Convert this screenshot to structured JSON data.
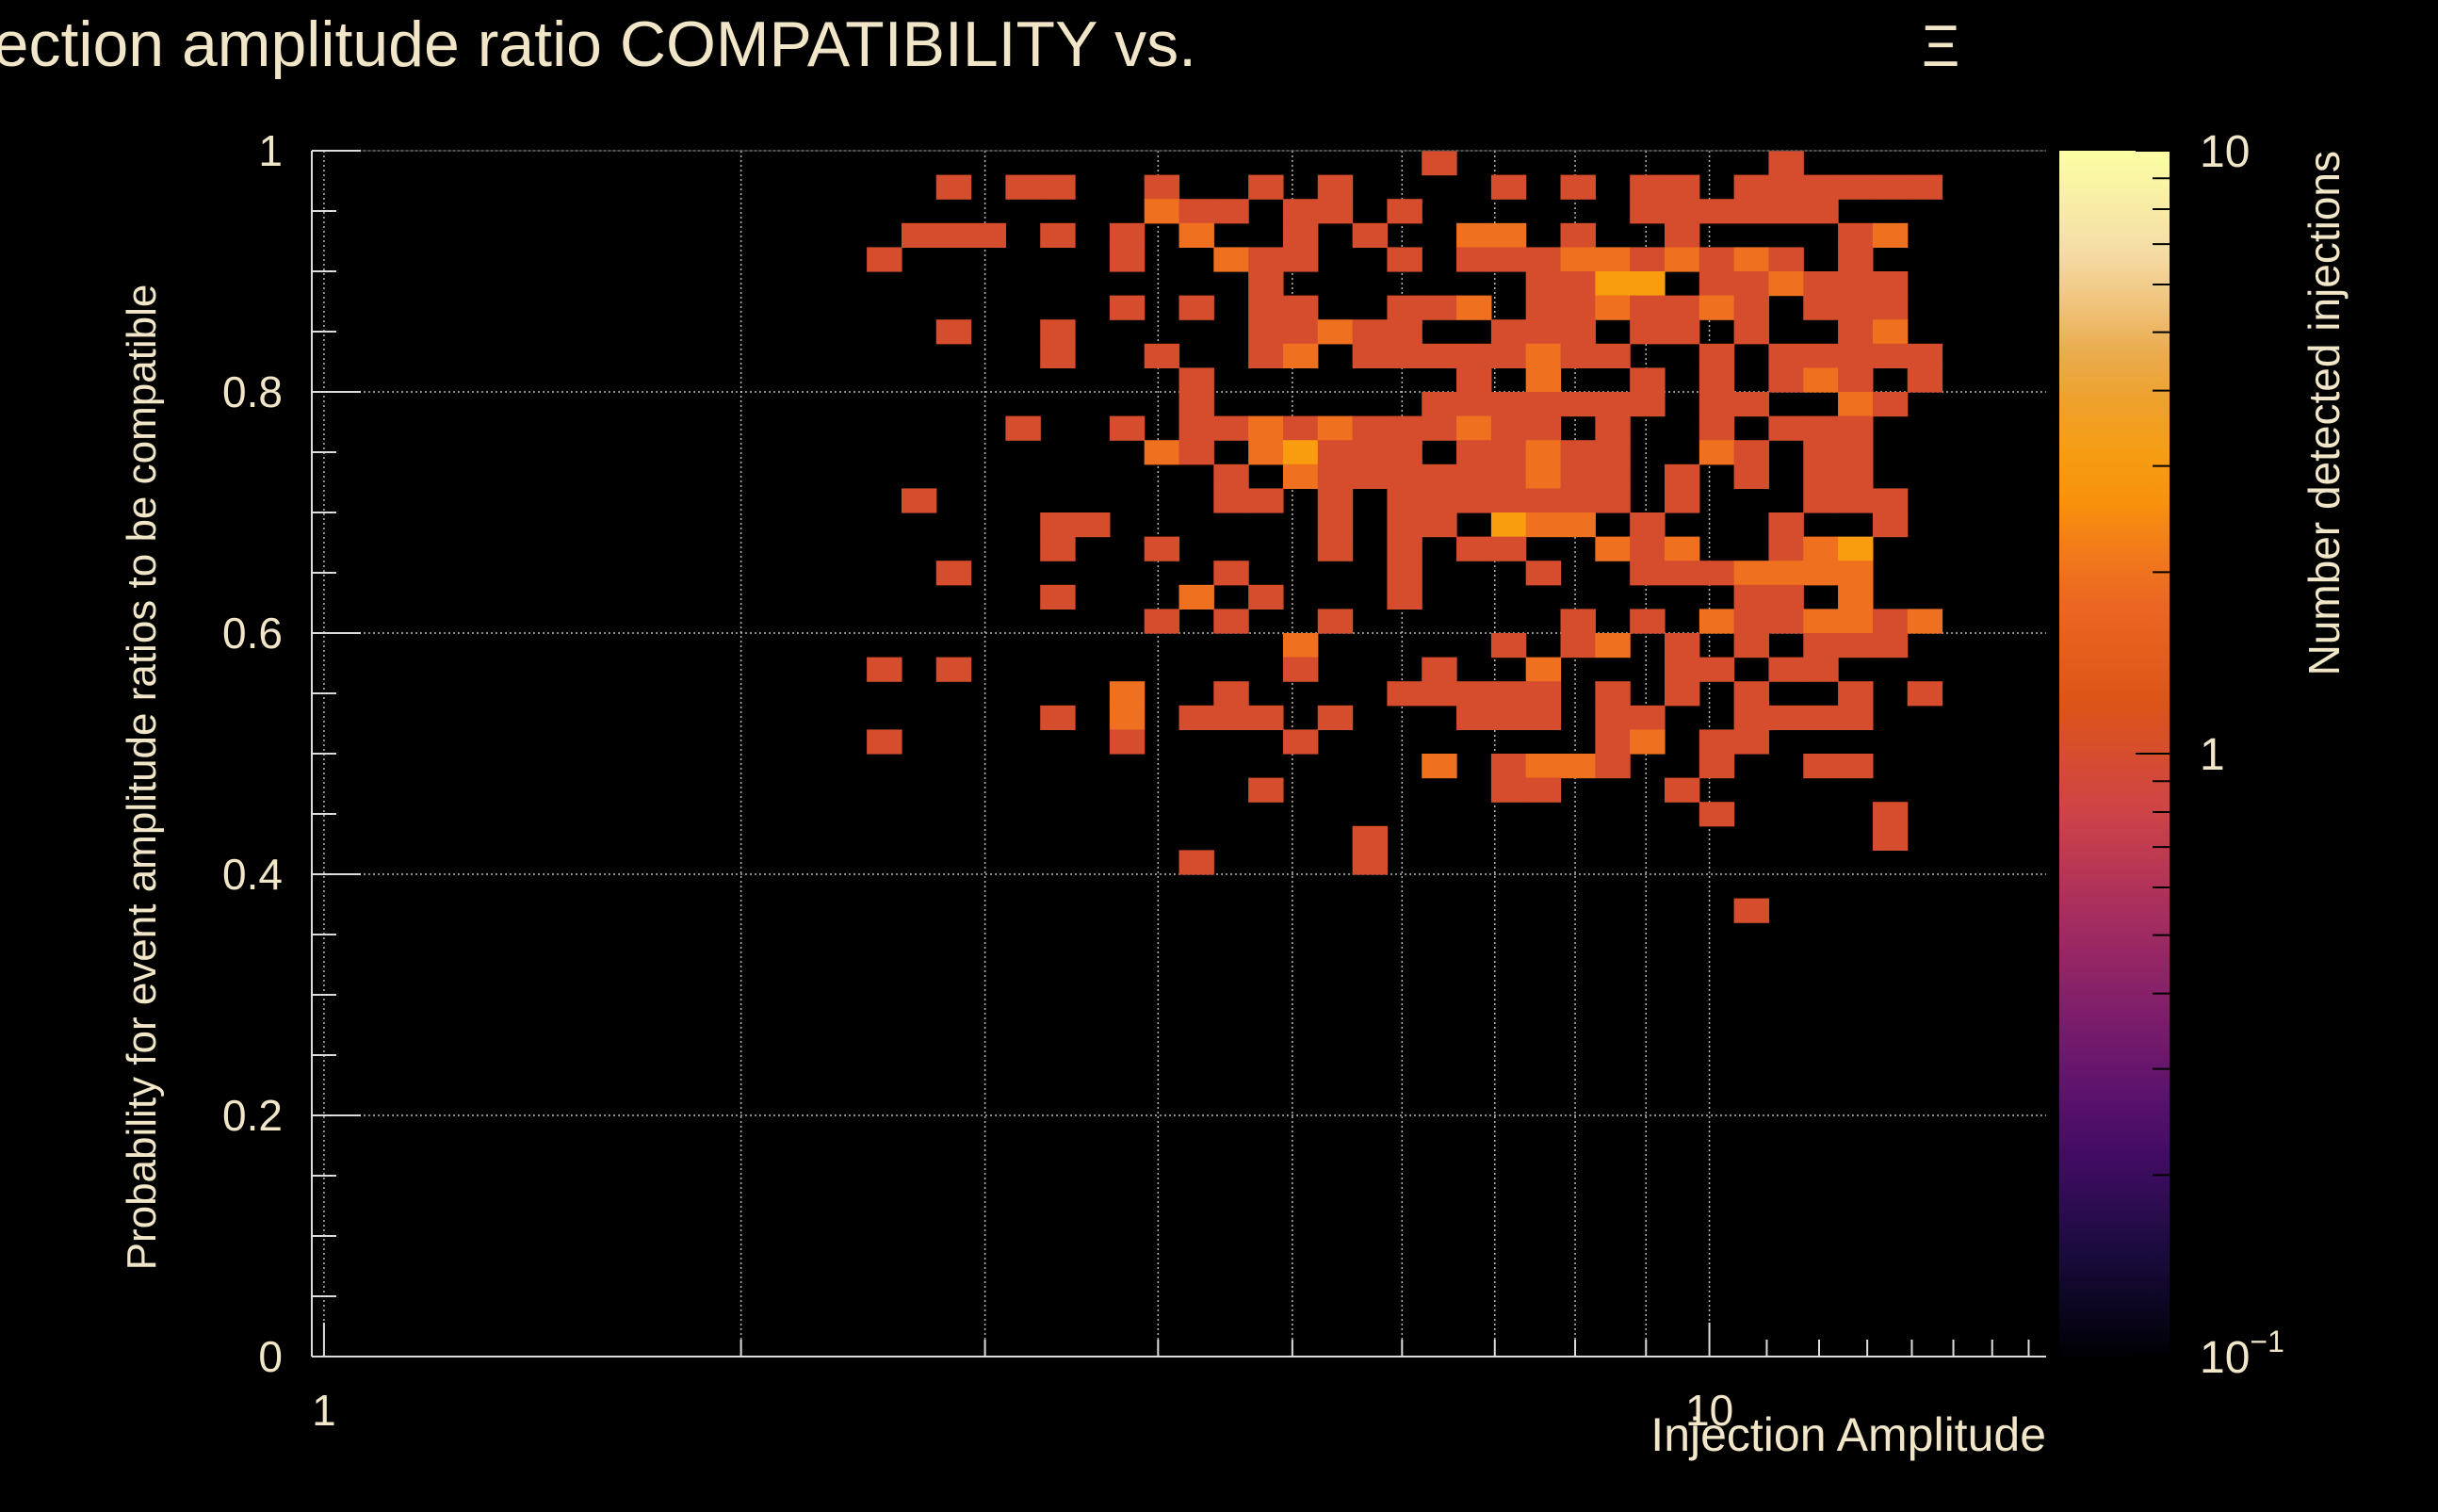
{
  "chart_data": {
    "type": "heatmap",
    "title": "Injection amplitude ratio COMPATIBILITY vs.",
    "title_symbol": "Ξ",
    "xlabel": "Injection Amplitude",
    "ylabel": "Probability for event amplitude ratios to be compatible",
    "zlabel": "Number detected injections",
    "x_scale": "log",
    "xlim": [
      0.98,
      17.5
    ],
    "ylim": [
      0,
      1
    ],
    "x_ticklabels": [
      {
        "value": 1,
        "label": "1"
      },
      {
        "value": 10,
        "label": "10"
      }
    ],
    "y_ticklabels": [
      "0",
      "0.2",
      "0.4",
      "0.6",
      "0.8",
      "1"
    ],
    "y_ticks": [
      0,
      0.2,
      0.4,
      0.6,
      0.8,
      1.0
    ],
    "z_scale": "log",
    "zlim": [
      0.1,
      10
    ],
    "z_ticklabels": [
      {
        "value": 10,
        "base": "10",
        "exp": ""
      },
      {
        "value": 1,
        "base": "1",
        "exp": ""
      },
      {
        "value": 0.1,
        "base": "10",
        "exp": "−1"
      }
    ],
    "grid": true,
    "bins": {
      "x_edges_count": 50,
      "y_edges_count": 50,
      "x_range": [
        0.98,
        17.5
      ],
      "y_range": [
        0,
        1
      ]
    },
    "colormap": [
      "#000004",
      "#1b0c41",
      "#4a0c6b",
      "#781c6d",
      "#a52c60",
      "#cf4446",
      "#dd5616",
      "#ed6925",
      "#fb9b06",
      "#e8a33c",
      "#f4d9a6",
      "#fcffa4"
    ],
    "cells": [
      [
        33,
        50,
        1
      ],
      [
        43,
        50,
        1
      ],
      [
        19,
        49,
        1
      ],
      [
        21,
        49,
        1
      ],
      [
        22,
        49,
        1
      ],
      [
        25,
        49,
        1
      ],
      [
        28,
        49,
        1
      ],
      [
        30,
        49,
        1
      ],
      [
        35,
        49,
        1
      ],
      [
        37,
        49,
        1
      ],
      [
        39,
        49,
        1
      ],
      [
        40,
        49,
        1
      ],
      [
        42,
        49,
        1
      ],
      [
        43,
        49,
        1
      ],
      [
        44,
        49,
        1
      ],
      [
        45,
        49,
        1
      ],
      [
        46,
        49,
        1
      ],
      [
        47,
        49,
        1
      ],
      [
        25,
        48,
        2
      ],
      [
        26,
        48,
        1
      ],
      [
        27,
        48,
        1
      ],
      [
        29,
        48,
        1
      ],
      [
        30,
        48,
        1
      ],
      [
        32,
        48,
        1
      ],
      [
        39,
        48,
        1
      ],
      [
        40,
        48,
        1
      ],
      [
        41,
        48,
        1
      ],
      [
        42,
        48,
        1
      ],
      [
        43,
        48,
        1
      ],
      [
        44,
        48,
        1
      ],
      [
        18,
        47,
        1
      ],
      [
        19,
        47,
        1
      ],
      [
        20,
        47,
        1
      ],
      [
        22,
        47,
        1
      ],
      [
        24,
        47,
        1
      ],
      [
        26,
        47,
        2
      ],
      [
        29,
        47,
        1
      ],
      [
        31,
        47,
        1
      ],
      [
        34,
        47,
        2
      ],
      [
        35,
        47,
        2
      ],
      [
        37,
        47,
        1
      ],
      [
        40,
        47,
        1
      ],
      [
        45,
        47,
        1
      ],
      [
        46,
        47,
        2
      ],
      [
        17,
        46,
        1
      ],
      [
        24,
        46,
        1
      ],
      [
        27,
        46,
        2
      ],
      [
        28,
        46,
        1
      ],
      [
        29,
        46,
        1
      ],
      [
        32,
        46,
        1
      ],
      [
        34,
        46,
        1
      ],
      [
        35,
        46,
        1
      ],
      [
        36,
        46,
        1
      ],
      [
        37,
        46,
        2
      ],
      [
        38,
        46,
        2
      ],
      [
        39,
        46,
        1
      ],
      [
        40,
        46,
        2
      ],
      [
        41,
        46,
        1
      ],
      [
        42,
        46,
        2
      ],
      [
        43,
        46,
        1
      ],
      [
        45,
        46,
        1
      ],
      [
        28,
        45,
        1
      ],
      [
        36,
        45,
        1
      ],
      [
        37,
        45,
        1
      ],
      [
        38,
        45,
        3
      ],
      [
        39,
        45,
        3
      ],
      [
        41,
        45,
        1
      ],
      [
        42,
        45,
        1
      ],
      [
        43,
        45,
        2
      ],
      [
        44,
        45,
        1
      ],
      [
        45,
        45,
        1
      ],
      [
        46,
        45,
        1
      ],
      [
        24,
        44,
        1
      ],
      [
        26,
        44,
        1
      ],
      [
        28,
        44,
        1
      ],
      [
        29,
        44,
        1
      ],
      [
        32,
        44,
        1
      ],
      [
        33,
        44,
        1
      ],
      [
        34,
        44,
        2
      ],
      [
        36,
        44,
        1
      ],
      [
        37,
        44,
        1
      ],
      [
        38,
        44,
        2
      ],
      [
        39,
        44,
        1
      ],
      [
        40,
        44,
        1
      ],
      [
        41,
        44,
        2
      ],
      [
        42,
        44,
        1
      ],
      [
        44,
        44,
        1
      ],
      [
        45,
        44,
        1
      ],
      [
        46,
        44,
        1
      ],
      [
        19,
        43,
        1
      ],
      [
        22,
        43,
        1
      ],
      [
        28,
        43,
        1
      ],
      [
        29,
        43,
        1
      ],
      [
        30,
        43,
        2
      ],
      [
        31,
        43,
        1
      ],
      [
        32,
        43,
        1
      ],
      [
        35,
        43,
        1
      ],
      [
        36,
        43,
        1
      ],
      [
        37,
        43,
        1
      ],
      [
        39,
        43,
        1
      ],
      [
        40,
        43,
        1
      ],
      [
        42,
        43,
        1
      ],
      [
        45,
        43,
        1
      ],
      [
        46,
        43,
        2
      ],
      [
        22,
        42,
        1
      ],
      [
        25,
        42,
        1
      ],
      [
        28,
        42,
        1
      ],
      [
        29,
        42,
        2
      ],
      [
        31,
        42,
        1
      ],
      [
        32,
        42,
        1
      ],
      [
        33,
        42,
        1
      ],
      [
        34,
        42,
        1
      ],
      [
        35,
        42,
        1
      ],
      [
        36,
        42,
        2
      ],
      [
        37,
        42,
        1
      ],
      [
        38,
        42,
        1
      ],
      [
        41,
        42,
        1
      ],
      [
        43,
        42,
        1
      ],
      [
        44,
        42,
        1
      ],
      [
        45,
        42,
        1
      ],
      [
        46,
        42,
        1
      ],
      [
        47,
        42,
        1
      ],
      [
        26,
        41,
        1
      ],
      [
        34,
        41,
        1
      ],
      [
        36,
        41,
        2
      ],
      [
        39,
        41,
        1
      ],
      [
        41,
        41,
        1
      ],
      [
        43,
        41,
        1
      ],
      [
        44,
        41,
        2
      ],
      [
        45,
        41,
        1
      ],
      [
        47,
        41,
        1
      ],
      [
        26,
        40,
        1
      ],
      [
        33,
        40,
        1
      ],
      [
        34,
        40,
        1
      ],
      [
        35,
        40,
        1
      ],
      [
        36,
        40,
        1
      ],
      [
        37,
        40,
        1
      ],
      [
        38,
        40,
        1
      ],
      [
        39,
        40,
        1
      ],
      [
        41,
        40,
        1
      ],
      [
        42,
        40,
        1
      ],
      [
        45,
        40,
        2
      ],
      [
        46,
        40,
        1
      ],
      [
        21,
        39,
        1
      ],
      [
        24,
        39,
        1
      ],
      [
        26,
        39,
        1
      ],
      [
        27,
        39,
        1
      ],
      [
        28,
        39,
        2
      ],
      [
        29,
        39,
        1
      ],
      [
        30,
        39,
        2
      ],
      [
        31,
        39,
        1
      ],
      [
        32,
        39,
        1
      ],
      [
        33,
        39,
        1
      ],
      [
        34,
        39,
        2
      ],
      [
        35,
        39,
        1
      ],
      [
        36,
        39,
        1
      ],
      [
        38,
        39,
        1
      ],
      [
        41,
        39,
        1
      ],
      [
        43,
        39,
        1
      ],
      [
        44,
        39,
        1
      ],
      [
        45,
        39,
        1
      ],
      [
        25,
        38,
        2
      ],
      [
        26,
        38,
        1
      ],
      [
        28,
        38,
        2
      ],
      [
        29,
        38,
        3
      ],
      [
        30,
        38,
        1
      ],
      [
        31,
        38,
        1
      ],
      [
        32,
        38,
        1
      ],
      [
        34,
        38,
        1
      ],
      [
        35,
        38,
        1
      ],
      [
        36,
        38,
        2
      ],
      [
        37,
        38,
        1
      ],
      [
        38,
        38,
        1
      ],
      [
        41,
        38,
        2
      ],
      [
        42,
        38,
        1
      ],
      [
        44,
        38,
        1
      ],
      [
        45,
        38,
        1
      ],
      [
        27,
        37,
        1
      ],
      [
        29,
        37,
        2
      ],
      [
        30,
        37,
        1
      ],
      [
        31,
        37,
        1
      ],
      [
        32,
        37,
        1
      ],
      [
        33,
        37,
        1
      ],
      [
        34,
        37,
        1
      ],
      [
        35,
        37,
        1
      ],
      [
        36,
        37,
        2
      ],
      [
        37,
        37,
        1
      ],
      [
        38,
        37,
        1
      ],
      [
        40,
        37,
        1
      ],
      [
        42,
        37,
        1
      ],
      [
        44,
        37,
        1
      ],
      [
        45,
        37,
        1
      ],
      [
        18,
        36,
        1
      ],
      [
        27,
        36,
        1
      ],
      [
        28,
        36,
        1
      ],
      [
        30,
        36,
        1
      ],
      [
        32,
        36,
        1
      ],
      [
        33,
        36,
        1
      ],
      [
        34,
        36,
        1
      ],
      [
        35,
        36,
        1
      ],
      [
        36,
        36,
        1
      ],
      [
        37,
        36,
        1
      ],
      [
        38,
        36,
        1
      ],
      [
        40,
        36,
        1
      ],
      [
        44,
        36,
        1
      ],
      [
        45,
        36,
        1
      ],
      [
        46,
        36,
        1
      ],
      [
        22,
        35,
        1
      ],
      [
        23,
        35,
        1
      ],
      [
        30,
        35,
        1
      ],
      [
        32,
        35,
        1
      ],
      [
        33,
        35,
        1
      ],
      [
        35,
        35,
        3
      ],
      [
        36,
        35,
        2
      ],
      [
        37,
        35,
        2
      ],
      [
        39,
        35,
        1
      ],
      [
        43,
        35,
        1
      ],
      [
        46,
        35,
        1
      ],
      [
        22,
        34,
        1
      ],
      [
        25,
        34,
        1
      ],
      [
        30,
        34,
        1
      ],
      [
        32,
        34,
        1
      ],
      [
        34,
        34,
        1
      ],
      [
        35,
        34,
        1
      ],
      [
        38,
        34,
        2
      ],
      [
        39,
        34,
        1
      ],
      [
        40,
        34,
        2
      ],
      [
        43,
        34,
        1
      ],
      [
        44,
        34,
        2
      ],
      [
        45,
        34,
        3
      ],
      [
        19,
        33,
        1
      ],
      [
        27,
        33,
        1
      ],
      [
        32,
        33,
        1
      ],
      [
        36,
        33,
        1
      ],
      [
        39,
        33,
        1
      ],
      [
        40,
        33,
        1
      ],
      [
        41,
        33,
        1
      ],
      [
        42,
        33,
        2
      ],
      [
        43,
        33,
        2
      ],
      [
        44,
        33,
        2
      ],
      [
        45,
        33,
        2
      ],
      [
        22,
        32,
        1
      ],
      [
        26,
        32,
        2
      ],
      [
        28,
        32,
        1
      ],
      [
        32,
        32,
        1
      ],
      [
        42,
        32,
        1
      ],
      [
        43,
        32,
        1
      ],
      [
        45,
        32,
        2
      ],
      [
        25,
        31,
        1
      ],
      [
        27,
        31,
        1
      ],
      [
        30,
        31,
        1
      ],
      [
        37,
        31,
        1
      ],
      [
        39,
        31,
        1
      ],
      [
        41,
        31,
        2
      ],
      [
        42,
        31,
        1
      ],
      [
        43,
        31,
        1
      ],
      [
        44,
        31,
        2
      ],
      [
        45,
        31,
        2
      ],
      [
        46,
        31,
        1
      ],
      [
        47,
        31,
        2
      ],
      [
        29,
        30,
        2
      ],
      [
        35,
        30,
        1
      ],
      [
        37,
        30,
        1
      ],
      [
        38,
        30,
        2
      ],
      [
        40,
        30,
        1
      ],
      [
        42,
        30,
        1
      ],
      [
        44,
        30,
        1
      ],
      [
        45,
        30,
        1
      ],
      [
        46,
        30,
        1
      ],
      [
        17,
        29,
        1
      ],
      [
        19,
        29,
        1
      ],
      [
        29,
        29,
        1
      ],
      [
        33,
        29,
        1
      ],
      [
        36,
        29,
        2
      ],
      [
        40,
        29,
        1
      ],
      [
        41,
        29,
        1
      ],
      [
        43,
        29,
        1
      ],
      [
        44,
        29,
        1
      ],
      [
        24,
        28,
        2
      ],
      [
        27,
        28,
        1
      ],
      [
        32,
        28,
        1
      ],
      [
        33,
        28,
        1
      ],
      [
        34,
        28,
        1
      ],
      [
        35,
        28,
        1
      ],
      [
        36,
        28,
        1
      ],
      [
        38,
        28,
        1
      ],
      [
        40,
        28,
        1
      ],
      [
        42,
        28,
        1
      ],
      [
        45,
        28,
        1
      ],
      [
        47,
        28,
        1
      ],
      [
        22,
        27,
        1
      ],
      [
        24,
        27,
        2
      ],
      [
        26,
        27,
        1
      ],
      [
        27,
        27,
        1
      ],
      [
        28,
        27,
        1
      ],
      [
        30,
        27,
        1
      ],
      [
        34,
        27,
        1
      ],
      [
        35,
        27,
        1
      ],
      [
        36,
        27,
        1
      ],
      [
        38,
        27,
        1
      ],
      [
        39,
        27,
        1
      ],
      [
        42,
        27,
        1
      ],
      [
        43,
        27,
        1
      ],
      [
        44,
        27,
        1
      ],
      [
        45,
        27,
        1
      ],
      [
        17,
        26,
        1
      ],
      [
        24,
        26,
        1
      ],
      [
        29,
        26,
        1
      ],
      [
        38,
        26,
        1
      ],
      [
        39,
        26,
        2
      ],
      [
        41,
        26,
        1
      ],
      [
        42,
        26,
        1
      ],
      [
        33,
        25,
        2
      ],
      [
        35,
        25,
        1
      ],
      [
        36,
        25,
        2
      ],
      [
        37,
        25,
        2
      ],
      [
        38,
        25,
        1
      ],
      [
        41,
        25,
        1
      ],
      [
        44,
        25,
        1
      ],
      [
        45,
        25,
        1
      ],
      [
        28,
        24,
        1
      ],
      [
        35,
        24,
        1
      ],
      [
        36,
        24,
        1
      ],
      [
        40,
        24,
        1
      ],
      [
        41,
        23,
        1
      ],
      [
        46,
        23,
        1
      ],
      [
        31,
        22,
        1
      ],
      [
        46,
        22,
        1
      ],
      [
        26,
        21,
        1
      ],
      [
        31,
        21,
        1
      ],
      [
        42,
        19,
        1
      ]
    ]
  }
}
